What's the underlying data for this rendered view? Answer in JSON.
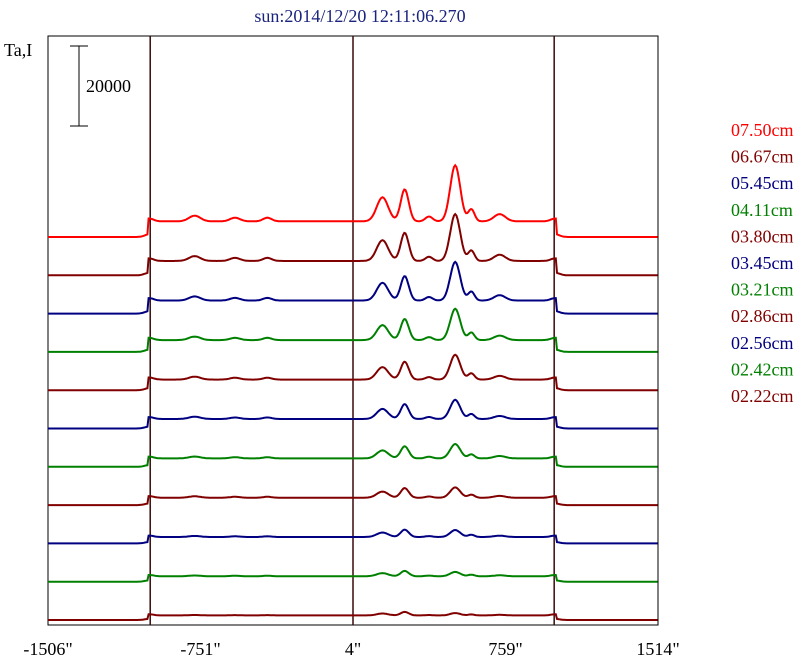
{
  "title": "sun:2014/12/20 12:11:06.270",
  "chart_data": {
    "type": "line",
    "title": "sun:2014/12/20 12:11:06.270",
    "ylabel": "Ta,I",
    "scale_bar_label": "20000",
    "scale_bar_value": 20000,
    "xlim": [
      -1506,
      1514
    ],
    "x_ticks": [
      -1506,
      -751,
      4,
      759,
      1514
    ],
    "x_tick_labels": [
      "-1506\"",
      "-751\"",
      "4\"",
      "759\"",
      "1514\""
    ],
    "vertical_markers": [
      -1000,
      4,
      1000
    ],
    "grid": false,
    "legend_position": "right",
    "series": [
      {
        "name": "07.50cm",
        "color": "#ff0000"
      },
      {
        "name": "06.67cm",
        "color": "#800000"
      },
      {
        "name": "05.45cm",
        "color": "#000080"
      },
      {
        "name": "04.11cm",
        "color": "#008000"
      },
      {
        "name": "03.80cm",
        "color": "#800000"
      },
      {
        "name": "03.45cm",
        "color": "#000080"
      },
      {
        "name": "03.21cm",
        "color": "#008000"
      },
      {
        "name": "02.86cm",
        "color": "#800000"
      },
      {
        "name": "02.56cm",
        "color": "#000080"
      },
      {
        "name": "02.42cm",
        "color": "#008000"
      },
      {
        "name": "02.22cm",
        "color": "#800000"
      }
    ]
  }
}
